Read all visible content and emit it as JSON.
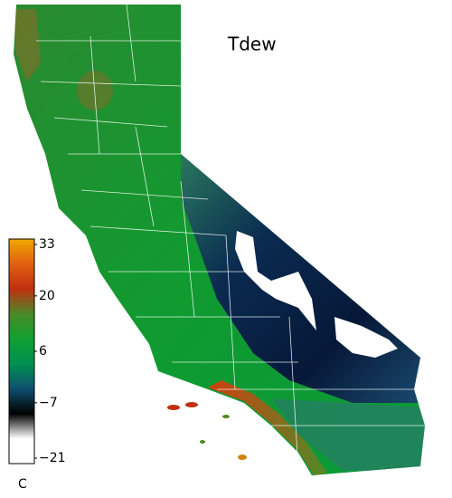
{
  "title": "Tdew",
  "colorbar": {
    "lim": [
      -21,
      33
    ],
    "ticks": [
      33,
      20,
      6,
      {
        "value": -7,
        "label": "−7"
      },
      {
        "value": -21,
        "label": "−21"
      }
    ],
    "unit": "C",
    "colors": [
      "#f0a800",
      "#e06010",
      "#c03010",
      "#4a8a28",
      "#10a030",
      "#009050",
      "#105070",
      "#000000",
      "#ffffff",
      "#ffffff"
    ]
  }
}
